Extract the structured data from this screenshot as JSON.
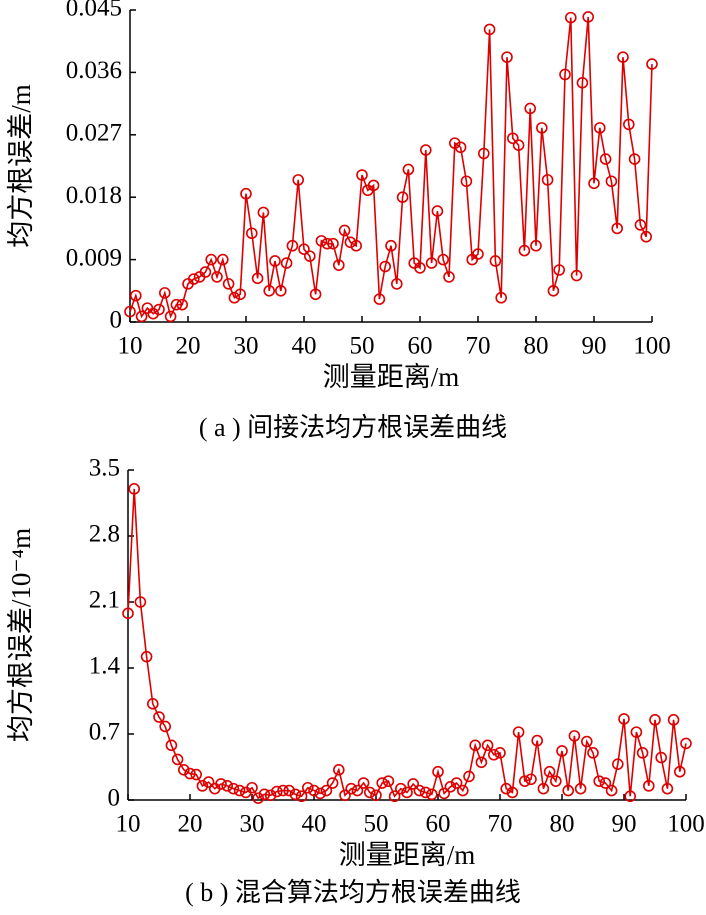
{
  "chart_data": [
    {
      "type": "line",
      "xlabel": "测量距离/m",
      "ylabel": "均方根误差/m",
      "caption": "( a ) 间接法均方根误差曲线",
      "color": "#dd0000",
      "x": [
        10,
        11,
        12,
        13,
        14,
        15,
        16,
        17,
        18,
        19,
        20,
        21,
        22,
        23,
        24,
        25,
        26,
        27,
        28,
        29,
        30,
        31,
        32,
        33,
        34,
        35,
        36,
        37,
        38,
        39,
        40,
        41,
        42,
        43,
        44,
        45,
        46,
        47,
        48,
        49,
        50,
        51,
        52,
        53,
        54,
        55,
        56,
        57,
        58,
        59,
        60,
        61,
        62,
        63,
        64,
        65,
        66,
        67,
        68,
        69,
        70,
        71,
        72,
        73,
        74,
        75,
        76,
        77,
        78,
        79,
        80,
        81,
        82,
        83,
        84,
        85,
        86,
        87,
        88,
        89,
        90,
        91,
        92,
        93,
        94,
        95,
        96,
        97,
        98,
        99,
        100
      ],
      "values": [
        0.0015,
        0.0038,
        0.0008,
        0.002,
        0.0012,
        0.0018,
        0.0042,
        0.0008,
        0.0025,
        0.0025,
        0.0055,
        0.0062,
        0.0065,
        0.0072,
        0.009,
        0.0065,
        0.009,
        0.0055,
        0.0035,
        0.004,
        0.0185,
        0.0128,
        0.0063,
        0.0158,
        0.0045,
        0.0088,
        0.0045,
        0.0085,
        0.011,
        0.0205,
        0.0105,
        0.0095,
        0.004,
        0.0117,
        0.0113,
        0.0113,
        0.0082,
        0.0132,
        0.0115,
        0.011,
        0.0212,
        0.019,
        0.0197,
        0.0033,
        0.008,
        0.011,
        0.0055,
        0.018,
        0.022,
        0.0085,
        0.0078,
        0.0248,
        0.0085,
        0.016,
        0.009,
        0.0065,
        0.0258,
        0.0252,
        0.0203,
        0.009,
        0.0098,
        0.0243,
        0.0422,
        0.0088,
        0.0035,
        0.0382,
        0.0265,
        0.0255,
        0.0103,
        0.0308,
        0.011,
        0.028,
        0.0205,
        0.0045,
        0.0075,
        0.0357,
        0.0439,
        0.0067,
        0.0345,
        0.044,
        0.02,
        0.028,
        0.0235,
        0.0203,
        0.0135,
        0.0382,
        0.0285,
        0.0235,
        0.014,
        0.0123,
        0.0372
      ],
      "xlim": [
        10,
        100
      ],
      "xticks": [
        10,
        20,
        30,
        40,
        50,
        60,
        70,
        80,
        90,
        100
      ],
      "ylim": [
        0,
        0.045
      ],
      "yticks": [
        0,
        0.009,
        0.018,
        0.027,
        0.036,
        0.045
      ]
    },
    {
      "type": "line",
      "xlabel": "测量距离/m",
      "ylabel": "均方根误差/10⁻⁴m",
      "caption": "( b ) 混合算法均方根误差曲线",
      "color": "#dd0000",
      "x": [
        10,
        11,
        12,
        13,
        14,
        15,
        16,
        17,
        18,
        19,
        20,
        21,
        22,
        23,
        24,
        25,
        26,
        27,
        28,
        29,
        30,
        31,
        32,
        33,
        34,
        35,
        36,
        37,
        38,
        39,
        40,
        41,
        42,
        43,
        44,
        45,
        46,
        47,
        48,
        49,
        50,
        51,
        52,
        53,
        54,
        55,
        56,
        57,
        58,
        59,
        60,
        61,
        62,
        63,
        64,
        65,
        66,
        67,
        68,
        69,
        70,
        71,
        72,
        73,
        74,
        75,
        76,
        77,
        78,
        79,
        80,
        81,
        82,
        83,
        84,
        85,
        86,
        87,
        88,
        89,
        90,
        91,
        92,
        93,
        94,
        95,
        96,
        97,
        98,
        99,
        100
      ],
      "values": [
        1.98,
        3.3,
        2.1,
        1.52,
        1.02,
        0.88,
        0.78,
        0.58,
        0.43,
        0.32,
        0.28,
        0.27,
        0.15,
        0.19,
        0.12,
        0.17,
        0.15,
        0.12,
        0.1,
        0.08,
        0.13,
        0.02,
        0.06,
        0.05,
        0.09,
        0.1,
        0.1,
        0.06,
        0.04,
        0.13,
        0.1,
        0.07,
        0.1,
        0.18,
        0.32,
        0.05,
        0.12,
        0.1,
        0.18,
        0.08,
        0.05,
        0.18,
        0.2,
        0.04,
        0.12,
        0.08,
        0.17,
        0.1,
        0.08,
        0.06,
        0.3,
        0.07,
        0.14,
        0.18,
        0.1,
        0.25,
        0.58,
        0.4,
        0.58,
        0.48,
        0.5,
        0.12,
        0.08,
        0.72,
        0.2,
        0.22,
        0.63,
        0.12,
        0.3,
        0.2,
        0.52,
        0.1,
        0.68,
        0.12,
        0.62,
        0.5,
        0.2,
        0.18,
        0.1,
        0.38,
        0.86,
        0.04,
        0.72,
        0.5,
        0.15,
        0.85,
        0.45,
        0.12,
        0.85,
        0.3,
        0.6
      ],
      "xlim": [
        10,
        100
      ],
      "xticks": [
        10,
        20,
        30,
        40,
        50,
        60,
        70,
        80,
        90,
        100
      ],
      "ylim": [
        0,
        3.5
      ],
      "yticks": [
        0,
        0.7,
        1.4,
        2.1,
        2.8,
        3.5
      ]
    }
  ]
}
